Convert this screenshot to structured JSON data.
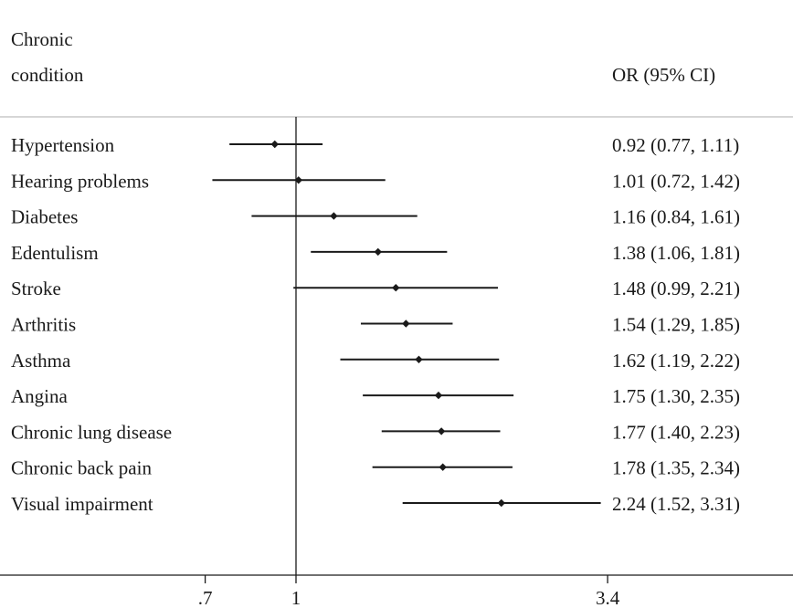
{
  "header": {
    "condition_col_line1": "Chronic",
    "condition_col_line2": "condition",
    "or_col": "OR (95% CI)"
  },
  "chart_data": {
    "type": "forest",
    "title": "",
    "xlabel": "",
    "ylabel": "",
    "x_scale": "log",
    "x_ticks": [
      {
        "value": 0.7,
        "label": ".7"
      },
      {
        "value": 1,
        "label": "1"
      },
      {
        "value": 3.4,
        "label": "3.4"
      }
    ],
    "reference_line": 1,
    "rows": [
      {
        "label": "Hypertension",
        "or": 0.92,
        "lo": 0.77,
        "hi": 1.11,
        "text": "0.92 (0.77, 1.11)"
      },
      {
        "label": "Hearing problems",
        "or": 1.01,
        "lo": 0.72,
        "hi": 1.42,
        "text": "1.01 (0.72, 1.42)"
      },
      {
        "label": "Diabetes",
        "or": 1.16,
        "lo": 0.84,
        "hi": 1.61,
        "text": "1.16 (0.84, 1.61)"
      },
      {
        "label": "Edentulism",
        "or": 1.38,
        "lo": 1.06,
        "hi": 1.81,
        "text": "1.38 (1.06, 1.81)"
      },
      {
        "label": "Stroke",
        "or": 1.48,
        "lo": 0.99,
        "hi": 2.21,
        "text": "1.48 (0.99, 2.21)"
      },
      {
        "label": "Arthritis",
        "or": 1.54,
        "lo": 1.29,
        "hi": 1.85,
        "text": "1.54 (1.29, 1.85)"
      },
      {
        "label": "Asthma",
        "or": 1.62,
        "lo": 1.19,
        "hi": 2.22,
        "text": "1.62 (1.19, 2.22)"
      },
      {
        "label": "Angina",
        "or": 1.75,
        "lo": 1.3,
        "hi": 2.35,
        "text": "1.75 (1.30, 2.35)"
      },
      {
        "label": "Chronic lung disease",
        "or": 1.77,
        "lo": 1.4,
        "hi": 2.23,
        "text": "1.77 (1.40, 2.23)"
      },
      {
        "label": "Chronic back pain",
        "or": 1.78,
        "lo": 1.35,
        "hi": 2.34,
        "text": "1.78 (1.35, 2.34)"
      },
      {
        "label": "Visual impairment",
        "or": 2.24,
        "lo": 1.52,
        "hi": 3.31,
        "text": "2.24 (1.52, 3.31)"
      }
    ]
  }
}
